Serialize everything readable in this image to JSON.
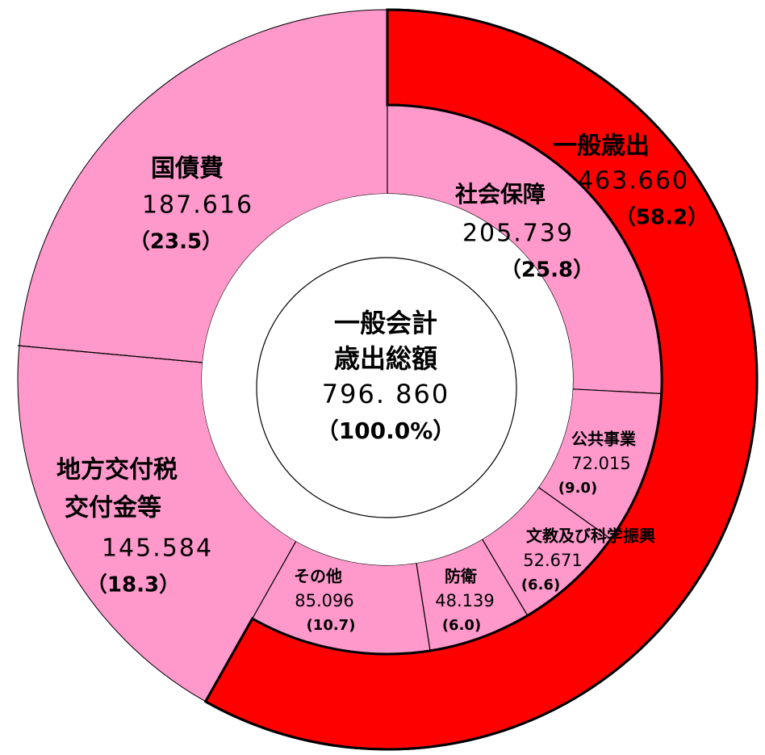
{
  "chart_data": {
    "type": "donut",
    "center": {
      "title": [
        "一般会計",
        "歳出総額"
      ],
      "total": 796.86,
      "total_label": "796. 860",
      "percent": 100,
      "percent_label": "（100.0%）"
    },
    "outer": {
      "categories": [
        [
          "一般歳出"
        ],
        [
          "地方交付税",
          "交付金等"
        ],
        [
          "国債費"
        ]
      ],
      "values": [
        463.66,
        145.584,
        187.616
      ],
      "value_labels": [
        "463.660",
        "145.584",
        "187.616"
      ],
      "percents": [
        58.2,
        18.3,
        23.5
      ],
      "percent_labels": [
        "（58.2）",
        "（18.3）",
        "（23.5）"
      ],
      "colors": [
        "#ff0000",
        "#ff99cc",
        "#ff99cc"
      ]
    },
    "inner": {
      "categories": [
        [
          "社会保障"
        ],
        [
          "公共事業"
        ],
        [
          "文教及び科学振興"
        ],
        [
          "防衛"
        ],
        [
          "その他"
        ]
      ],
      "values": [
        205.739,
        72.015,
        52.671,
        48.139,
        85.096
      ],
      "value_labels": [
        "205.739",
        "72.015",
        "52.671",
        "48.139",
        "85.096"
      ],
      "percents": [
        25.8,
        9,
        6.6,
        6,
        10.7
      ],
      "percent_labels": [
        "（25.8）",
        "(9.0)",
        "(6.6)",
        "(6.0)",
        "(10.7)"
      ],
      "color": "#ff99cc"
    }
  }
}
